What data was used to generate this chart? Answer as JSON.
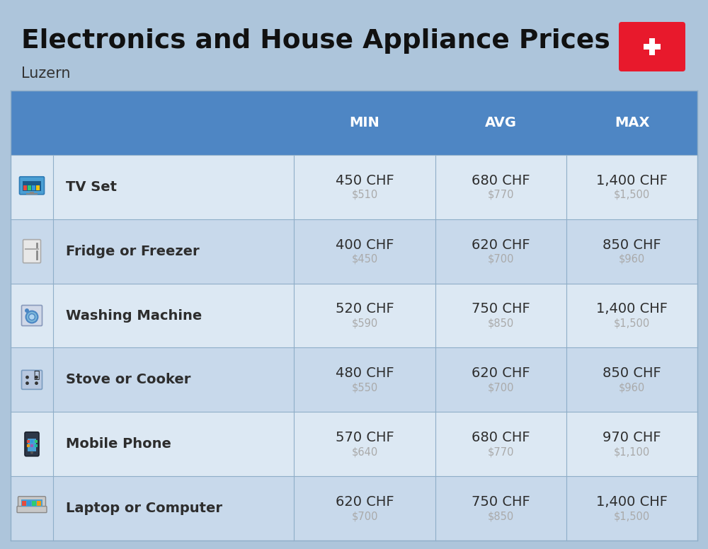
{
  "title": "Electronics and House Appliance Prices",
  "subtitle": "Luzern",
  "bg_color": "#adc5db",
  "header_color": "#4e86c4",
  "header_text_color": "#ffffff",
  "row_color_even": "#dce8f3",
  "row_color_odd": "#c8d9eb",
  "columns": [
    "MIN",
    "AVG",
    "MAX"
  ],
  "items": [
    {
      "name": "TV Set",
      "min_chf": "450 CHF",
      "min_usd": "$510",
      "avg_chf": "680 CHF",
      "avg_usd": "$770",
      "max_chf": "1,400 CHF",
      "max_usd": "$1,500"
    },
    {
      "name": "Fridge or Freezer",
      "min_chf": "400 CHF",
      "min_usd": "$450",
      "avg_chf": "620 CHF",
      "avg_usd": "$700",
      "max_chf": "850 CHF",
      "max_usd": "$960"
    },
    {
      "name": "Washing Machine",
      "min_chf": "520 CHF",
      "min_usd": "$590",
      "avg_chf": "750 CHF",
      "avg_usd": "$850",
      "max_chf": "1,400 CHF",
      "max_usd": "$1,500"
    },
    {
      "name": "Stove or Cooker",
      "min_chf": "480 CHF",
      "min_usd": "$550",
      "avg_chf": "620 CHF",
      "avg_usd": "$700",
      "max_chf": "850 CHF",
      "max_usd": "$960"
    },
    {
      "name": "Mobile Phone",
      "min_chf": "570 CHF",
      "min_usd": "$640",
      "avg_chf": "680 CHF",
      "avg_usd": "$770",
      "max_chf": "970 CHF",
      "max_usd": "$1,100"
    },
    {
      "name": "Laptop or Computer",
      "min_chf": "620 CHF",
      "min_usd": "$700",
      "avg_chf": "750 CHF",
      "avg_usd": "$850",
      "max_chf": "1,400 CHF",
      "max_usd": "$1,500"
    }
  ],
  "swiss_flag_color": "#e8192c",
  "cell_text_color": "#2d2d2d",
  "usd_text_color": "#aaaaaa",
  "item_name_fontsize": 14,
  "chf_fontsize": 14,
  "usd_fontsize": 10.5,
  "header_fontsize": 14,
  "title_fontsize": 27,
  "subtitle_fontsize": 15,
  "divider_color": "#8faec8"
}
